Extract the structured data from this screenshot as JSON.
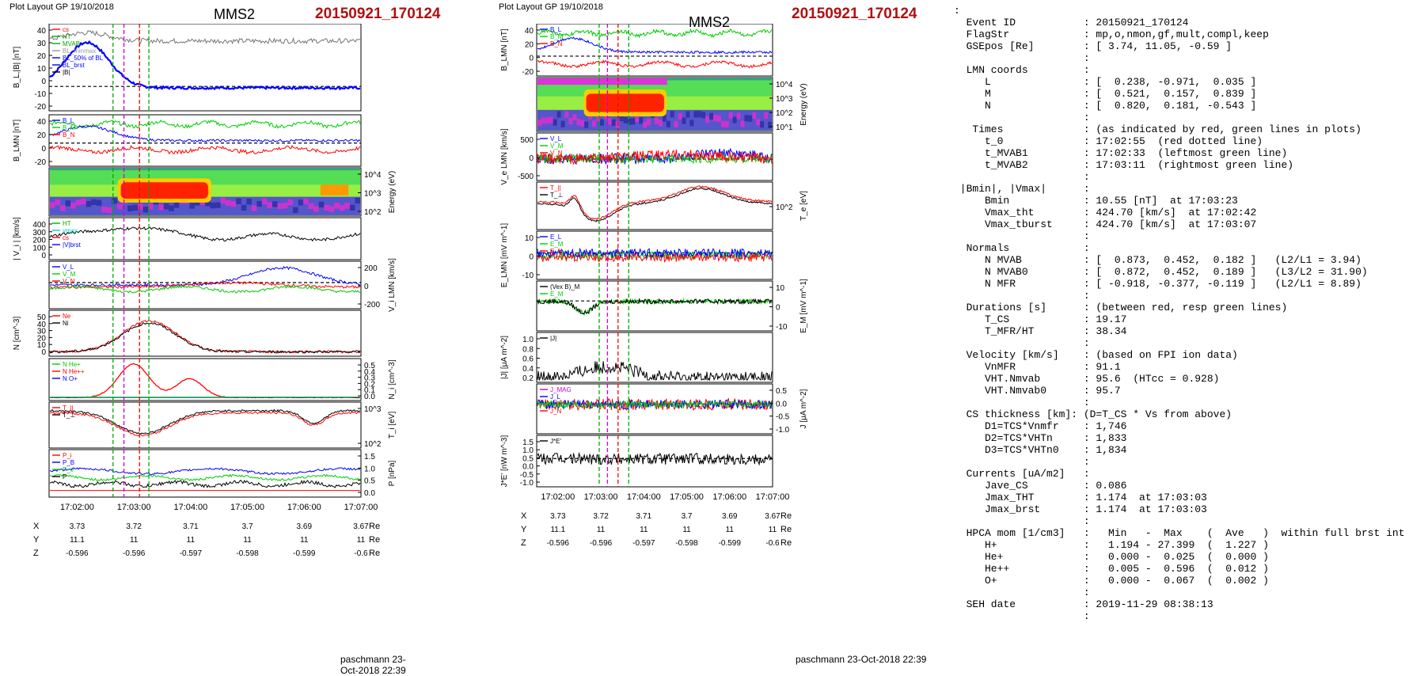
{
  "left": {
    "layout_label": "Plot Layout GP 19/10/2018",
    "spacecraft": "MMS2",
    "event": "20150921_170124",
    "footer": "paschmann 23-Oct-2018 22:39",
    "panels": [
      {
        "ylabel": "B_L,|B| [nT]",
        "legend": [
          "cs",
          "HT",
          "MVAB",
          "BL_minmax",
          "BL_50% of BL",
          "BL_brst",
          "|B|"
        ]
      },
      {
        "ylabel": "B_LMN [nT]",
        "legend": [
          "B_L",
          "B_M",
          "B_N"
        ]
      },
      {
        "ylabel": "Energy (eV)",
        "legend": []
      },
      {
        "ylabel": "| V_i | [km/s]",
        "legend": [
          "HT",
          "vmax",
          "cs",
          "|V|brst"
        ]
      },
      {
        "ylabel": "V_i LMN [km/s]",
        "legend": [
          "V_L",
          "V_M",
          "V_N"
        ]
      },
      {
        "ylabel": "N [cm^-3]",
        "legend": [
          "Ne",
          "Ni"
        ]
      },
      {
        "ylabel": "N_i [cm^-3]",
        "legend": [
          "N He+",
          "N He++",
          "N O+"
        ]
      },
      {
        "ylabel": "T_i [eV]",
        "legend": [
          "T_||",
          "T_⊥"
        ]
      },
      {
        "ylabel": "P [nPa]",
        "legend": [
          "P_i",
          "P_B",
          "P_e",
          "P"
        ]
      }
    ],
    "ticks": {
      "p0": [
        "40",
        "30",
        "20",
        "10",
        "0",
        "-10",
        "-20"
      ],
      "p1": [
        "40",
        "20",
        "0",
        "-20"
      ],
      "p2": [
        "10^4",
        "10^3",
        "10^2"
      ],
      "p3": [
        "400",
        "300",
        "200",
        "100",
        "0"
      ],
      "p4": [
        "200",
        "0",
        "-200"
      ],
      "p5": [
        "50",
        "40",
        "30",
        "20",
        "10",
        "0"
      ],
      "p6": [
        "0.5",
        "0.4",
        "0.3",
        "0.2",
        "0.1",
        "0.0"
      ],
      "p7": [
        "10^3",
        "10^2"
      ],
      "p8": [
        "1.5",
        "1.0",
        "0.5",
        "0.0"
      ]
    }
  },
  "middle": {
    "layout_label": "Plot Layout GP 19/10/2018",
    "spacecraft": "MMS2",
    "event": "20150921_170124",
    "footer": "paschmann 23-Oct-2018 22:39",
    "panels": [
      {
        "ylabel": "B_LMN [nT]",
        "legend": [
          "B_L",
          "B_M",
          "B_N"
        ]
      },
      {
        "ylabel": "Energy (eV)",
        "legend": []
      },
      {
        "ylabel": "V_e LMN [km/s]",
        "legend": [
          "V_L",
          "V_M",
          "V_N"
        ]
      },
      {
        "ylabel": "T_e [eV]",
        "legend": [
          "T_||",
          "T_⊥"
        ]
      },
      {
        "ylabel": "E_LMN [mV m^-1]",
        "legend": [
          "E_L",
          "E_M",
          "E_N"
        ]
      },
      {
        "ylabel": "E_M [mV m^-1]",
        "legend": [
          "(Vex B)_M",
          "E_M"
        ]
      },
      {
        "ylabel": "|J| [μA m^-2]",
        "legend": [
          "|J|"
        ]
      },
      {
        "ylabel": "J [μA m^-2]",
        "legend": [
          "J_MAG",
          "J_L",
          "J_M",
          "J_N"
        ]
      },
      {
        "ylabel": "J*E' [nW m^-3]",
        "legend": [
          "J*E'"
        ]
      }
    ],
    "ticks": {
      "p0": [
        "40",
        "20",
        "0",
        "-20"
      ],
      "p1": [
        "10^4",
        "10^3",
        "10^2",
        "10^1"
      ],
      "p2": [
        "500",
        "0",
        "-500"
      ],
      "p3": [
        "10^2"
      ],
      "p4": [
        "10",
        "0",
        "-10"
      ],
      "p5": [
        "10",
        "0",
        "-10"
      ],
      "p6": [
        "1.0",
        "0.8",
        "0.6",
        "0.4",
        "0.2"
      ],
      "p7": [
        "0.5",
        "0.0",
        "-0.5",
        "-1.0"
      ],
      "p8": [
        "1.5",
        "1.0",
        "0.5",
        "0.0",
        "-0.5",
        "-1.0"
      ]
    }
  },
  "time_ticks": [
    "17:02:00",
    "17:03:00",
    "17:04:00",
    "17:05:00",
    "17:06:00",
    "17:07:00"
  ],
  "coords": {
    "X": {
      "label": "X",
      "values": [
        "3.73",
        "3.72",
        "3.71",
        "3.7",
        "3.69",
        "3.67"
      ],
      "unit": "Re"
    },
    "Y": {
      "label": "Y",
      "values": [
        "11.1",
        "11",
        "11",
        "11",
        "11",
        "11"
      ],
      "unit": "Re"
    },
    "Z": {
      "label": "Z",
      "values": [
        "-0.596",
        "-0.596",
        "-0.597",
        "-0.598",
        "-0.599",
        "-0.6"
      ],
      "unit": "Re"
    }
  },
  "info_text": [
    ":",
    "  Event ID           : 20150921_170124",
    "  FlagStr            : mp,o,nmon,gf,mult,compl,keep",
    "  GSEpos [Re]        : [ 3.74, 11.05, -0.59 ]",
    "                     :",
    "  LMN coords         :",
    "     L               : [  0.238, -0.971,  0.035 ]",
    "     M               : [  0.521,  0.157,  0.839 ]",
    "     N               : [  0.820,  0.181, -0.543 ]",
    "                     :",
    "   Times             : (as indicated by red, green lines in plots)",
    "     t_0             : 17:02:55  (red dotted line)",
    "     t_MVAB1         : 17:02:33  (leftmost green line)",
    "     t_MVAB2         : 17:03:11  (rightmost green line)",
    "                     :",
    " |Bmin|, |Vmax|      :",
    "     Bmin            : 10.55 [nT]  at 17:03:23",
    "     Vmax_tht        : 424.70 [km/s]  at 17:02:42",
    "     Vmax_tburst     : 424.70 [km/s]  at 17:03:07",
    "                     :",
    "  Normals            :",
    "     N MVAB          : [  0.873,  0.452,  0.182 ]   (L2/L1 = 3.94)",
    "     N MVAB0         : [  0.872,  0.452,  0.189 ]   (L3/L2 = 31.90)",
    "     N MFR           : [ -0.918, -0.377, -0.119 ]   (L2/L1 = 8.89)",
    "                     :",
    "  Durations [s]      : (between red, resp green lines)",
    "     T_CS            : 19.17",
    "     T_MFR/HT        : 38.34",
    "                     :",
    "  Velocity [km/s]    : (based on FPI ion data)",
    "     VnMFR           : 91.1",
    "     VHT.Nmvab       : 95.6  (HTcc = 0.928)",
    "     VHT.Nmvab0      : 95.7",
    "                     :",
    "  CS thickness [km]: (D=T_CS * Vs from above)",
    "     D1=TCS*Vnmfr    : 1,746",
    "     D2=TCS*VHTn     : 1,833",
    "     D3=TCS*VHTn0    : 1,834",
    "                     :",
    "  Currents [uA/m2]   :",
    "     Jave_CS         : 0.086",
    "     Jmax_THT        : 1.174  at 17:03:03",
    "     Jmax_brst       : 1.174  at 17:03:03",
    "                     :",
    "  HPCA mom [1/cm3]   :   Min   -  Max    (  Ave   )  within full brst int",
    "     H+              :   1.194 - 27.399  (  1.227 )",
    "     He+             :   0.000 -  0.025  (  0.000 )",
    "     He++            :   0.005 -  0.596  (  0.012 )",
    "     O+              :   0.000 -  0.067  (  0.002 )",
    "                     :",
    "  SEH date           : 2019-11-29 08:38:13",
    "                     :"
  ],
  "chart_data": {
    "type": "line",
    "title": "MMS2 20150921_170124",
    "xlabel": "",
    "x": [
      "17:02:00",
      "17:03:00",
      "17:04:00",
      "17:05:00",
      "17:06:00",
      "17:07:00"
    ],
    "markers": {
      "t_0": "17:02:55",
      "t_MVAB1": "17:02:33",
      "t_MVAB2": "17:03:11"
    },
    "grid": false,
    "legend_placement": "top-left",
    "series_colors": {
      "L": "#0000ff",
      "M": "#00cc00",
      "N": "#ff0000",
      "total": "#000000",
      "marker_cs": "#cc00cc",
      "marker_mvab": "#00aa00",
      "marker_t0": "#ff0000",
      "spec_hi": "#ff0000",
      "spec_mid": "#ffff00",
      "spec_lo": "#00cccc",
      "spec_bg": "#3333cc"
    }
  }
}
